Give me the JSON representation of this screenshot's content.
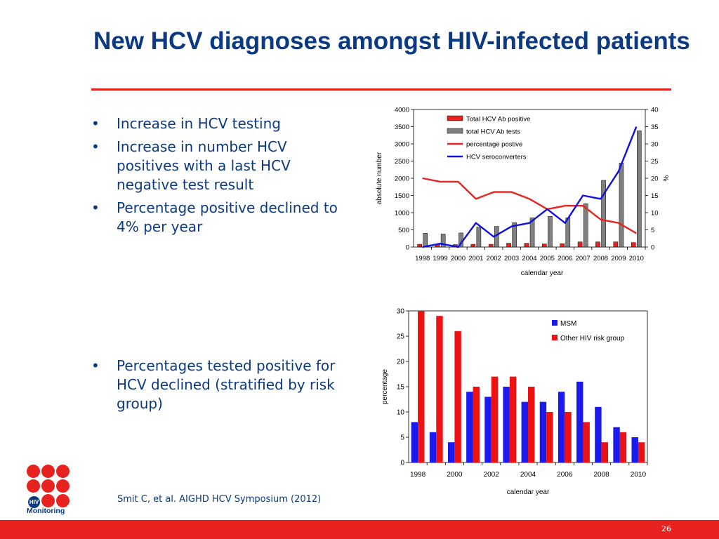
{
  "slide": {
    "title": "New HCV diagnoses amongst HIV-infected patients",
    "bullets_top": [
      "Increase in HCV testing",
      "Increase in number HCV positives with a last HCV negative test result",
      "Percentage positive declined to 4% per year"
    ],
    "bullets_bottom": [
      "Percentages tested positive for HCV declined (stratified by risk group)"
    ],
    "bullet_glyph": "•",
    "citation": "Smit C, et al. AIGHD HCV Symposium (2012)",
    "page_number": "26",
    "logo": {
      "badge": "HIV",
      "text": "Monitoring"
    },
    "colors": {
      "title": "#0b3a82",
      "accent": "#e8231f",
      "bar_grey": "#808080",
      "line_blue": "#1010e0",
      "bar_blue": "#1a1aee",
      "bar_red": "#ee1111"
    }
  },
  "chart_data": [
    {
      "type": "bar",
      "categories": [
        "1998",
        "1999",
        "2000",
        "2001",
        "2002",
        "2003",
        "2004",
        "2005",
        "2006",
        "2007",
        "2008",
        "2009",
        "2010"
      ],
      "series": [
        {
          "name": "Total HCV Ab positive",
          "kind": "bar",
          "axis": "left",
          "color": "#e8231f",
          "values": [
            80,
            80,
            70,
            80,
            80,
            110,
            110,
            90,
            100,
            150,
            150,
            150,
            130
          ]
        },
        {
          "name": "total HCV Ab tests",
          "kind": "bar",
          "axis": "left",
          "color": "#808080",
          "values": [
            400,
            380,
            410,
            580,
            600,
            710,
            850,
            890,
            850,
            1260,
            1940,
            2440,
            3380
          ]
        },
        {
          "name": "percentage postive",
          "kind": "line",
          "axis": "right",
          "color": "#e8231f",
          "values": [
            20,
            19,
            19,
            14,
            16,
            16,
            14,
            11,
            12,
            12,
            8,
            7,
            4
          ]
        },
        {
          "name": "HCV seroconverters",
          "kind": "line",
          "axis": "right",
          "color": "#1010e0",
          "values": [
            0,
            1,
            0,
            7,
            3,
            6,
            7,
            11,
            7,
            15,
            14,
            22,
            35
          ]
        }
      ],
      "xlabel": "calendar year",
      "ylabel": "absolute number",
      "y2label": "%",
      "ylim": [
        0,
        4000
      ],
      "y2lim": [
        0,
        40
      ],
      "yticks": [
        0,
        500,
        1000,
        1500,
        2000,
        2500,
        3000,
        3500,
        4000
      ],
      "y2ticks": [
        0,
        5,
        10,
        15,
        20,
        25,
        30,
        35,
        40
      ],
      "legend": "top-center"
    },
    {
      "type": "bar",
      "categories": [
        "1998",
        "1999",
        "2000",
        "2001",
        "2002",
        "2003",
        "2004",
        "2005",
        "2006",
        "2007",
        "2008",
        "2009",
        "2010"
      ],
      "xticks_shown": [
        "1998",
        "2000",
        "2002",
        "2004",
        "2006",
        "2008",
        "2010"
      ],
      "series": [
        {
          "name": "MSM",
          "color": "#1a1aee",
          "values": [
            8,
            6,
            4,
            14,
            13,
            15,
            12,
            12,
            14,
            16,
            11,
            7,
            5
          ]
        },
        {
          "name": "Other HIV risk group",
          "color": "#ee1111",
          "values": [
            30,
            29,
            26,
            15,
            17,
            17,
            15,
            10,
            10,
            8,
            4,
            6,
            4
          ]
        }
      ],
      "xlabel": "calendar year",
      "ylabel": "percentage",
      "ylim": [
        0,
        30
      ],
      "yticks": [
        0,
        5,
        10,
        15,
        20,
        25,
        30
      ],
      "legend": "top-right"
    }
  ]
}
